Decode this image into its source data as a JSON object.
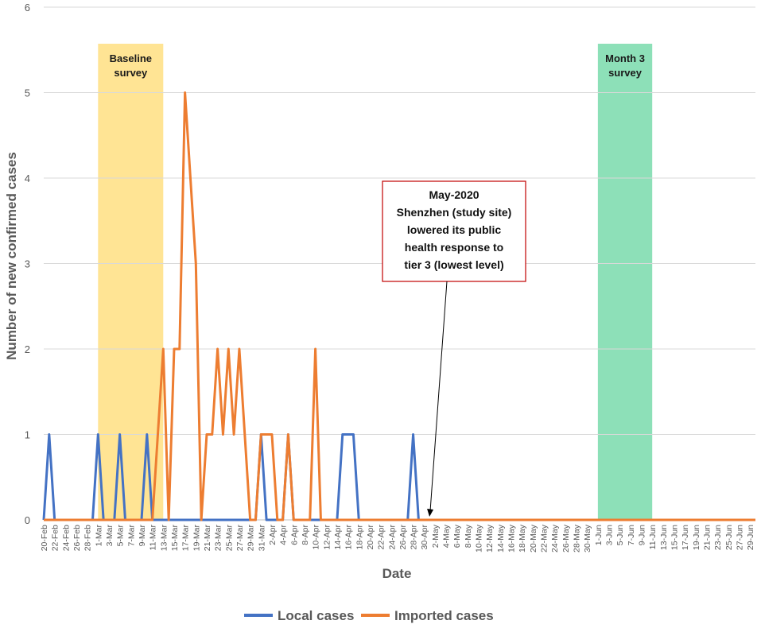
{
  "chart_data": {
    "type": "line",
    "title": "",
    "xlabel": "Date",
    "ylabel": "Number of new confirmed cases",
    "ylim": [
      0,
      6
    ],
    "yticks": [
      "0",
      "1",
      "2",
      "3",
      "4",
      "5",
      "6"
    ],
    "x_start": "20-Feb",
    "x_end": "30-Jun",
    "x_tick_labels": [
      "20-Feb",
      "22-Feb",
      "24-Feb",
      "26-Feb",
      "28-Feb",
      "1-Mar",
      "3-Mar",
      "5-Mar",
      "7-Mar",
      "9-Mar",
      "11-Mar",
      "13-Mar",
      "15-Mar",
      "17-Mar",
      "19-Mar",
      "21-Mar",
      "23-Mar",
      "25-Mar",
      "27-Mar",
      "29-Mar",
      "31-Mar",
      "2-Apr",
      "4-Apr",
      "6-Apr",
      "8-Apr",
      "10-Apr",
      "12-Apr",
      "14-Apr",
      "16-Apr",
      "18-Apr",
      "20-Apr",
      "22-Apr",
      "24-Apr",
      "26-Apr",
      "28-Apr",
      "30-Apr",
      "2-May",
      "4-May",
      "6-May",
      "8-May",
      "10-May",
      "12-May",
      "14-May",
      "16-May",
      "18-May",
      "20-May",
      "22-May",
      "24-May",
      "26-May",
      "28-May",
      "30-May",
      "1-Jun",
      "3-Jun",
      "5-Jun",
      "7-Jun",
      "9-Jun",
      "11-Jun",
      "13-Jun",
      "15-Jun",
      "17-Jun",
      "19-Jun",
      "21-Jun",
      "23-Jun",
      "25-Jun",
      "27-Jun",
      "29-Jun"
    ],
    "gridlines": true,
    "legend_position": "bottom",
    "series": [
      {
        "name": "Local cases",
        "color": "#4472C4",
        "points": [
          [
            "20-Feb",
            0
          ],
          [
            "21-Feb",
            1
          ],
          [
            "22-Feb",
            0
          ],
          [
            "29-Feb",
            0
          ],
          [
            "1-Mar",
            1
          ],
          [
            "2-Mar",
            0
          ],
          [
            "4-Mar",
            0
          ],
          [
            "5-Mar",
            1
          ],
          [
            "6-Mar",
            0
          ],
          [
            "9-Mar",
            0
          ],
          [
            "10-Mar",
            1
          ],
          [
            "11-Mar",
            0
          ],
          [
            "30-Mar",
            0
          ],
          [
            "31-Mar",
            1
          ],
          [
            "1-Apr",
            0
          ],
          [
            "4-Apr",
            0
          ],
          [
            "5-Apr",
            1
          ],
          [
            "6-Apr",
            0
          ],
          [
            "14-Apr",
            0
          ],
          [
            "15-Apr",
            1
          ],
          [
            "16-Apr",
            1
          ],
          [
            "17-Apr",
            1
          ],
          [
            "18-Apr",
            0
          ],
          [
            "27-Apr",
            0
          ],
          [
            "28-Apr",
            1
          ],
          [
            "29-Apr",
            0
          ],
          [
            "30-Jun",
            0
          ]
        ]
      },
      {
        "name": "Imported cases",
        "color": "#ED7D31",
        "points": [
          [
            "20-Feb",
            0
          ],
          [
            "11-Mar",
            0
          ],
          [
            "13-Mar",
            2
          ],
          [
            "14-Mar",
            0
          ],
          [
            "15-Mar",
            2
          ],
          [
            "16-Mar",
            2
          ],
          [
            "17-Mar",
            5
          ],
          [
            "19-Mar",
            3
          ],
          [
            "20-Mar",
            0
          ],
          [
            "21-Mar",
            1
          ],
          [
            "22-Mar",
            1
          ],
          [
            "23-Mar",
            2
          ],
          [
            "24-Mar",
            1
          ],
          [
            "25-Mar",
            2
          ],
          [
            "26-Mar",
            1
          ],
          [
            "27-Mar",
            2
          ],
          [
            "28-Mar",
            1
          ],
          [
            "29-Mar",
            0
          ],
          [
            "30-Mar",
            0
          ],
          [
            "31-Mar",
            1
          ],
          [
            "1-Apr",
            1
          ],
          [
            "2-Apr",
            1
          ],
          [
            "3-Apr",
            0
          ],
          [
            "4-Apr",
            0
          ],
          [
            "5-Apr",
            1
          ],
          [
            "6-Apr",
            0
          ],
          [
            "9-Apr",
            0
          ],
          [
            "10-Apr",
            2
          ],
          [
            "11-Apr",
            0
          ],
          [
            "30-Jun",
            0
          ]
        ]
      }
    ],
    "shaded_regions": [
      {
        "label_lines": [
          "Baseline",
          "survey"
        ],
        "from": "1-Mar",
        "to": "13-Mar",
        "color": "#FFD966"
      },
      {
        "label_lines": [
          "Month 3",
          "survey"
        ],
        "from": "1-Jun",
        "to": "11-Jun",
        "color": "#5DD39A"
      }
    ],
    "annotation": {
      "lines": [
        "May-2020",
        "Shenzhen (study site)",
        "lowered its public",
        "health response to",
        "tier 3 (lowest level)"
      ],
      "border_color": "#C00000",
      "arrow_target": "1-May"
    }
  }
}
